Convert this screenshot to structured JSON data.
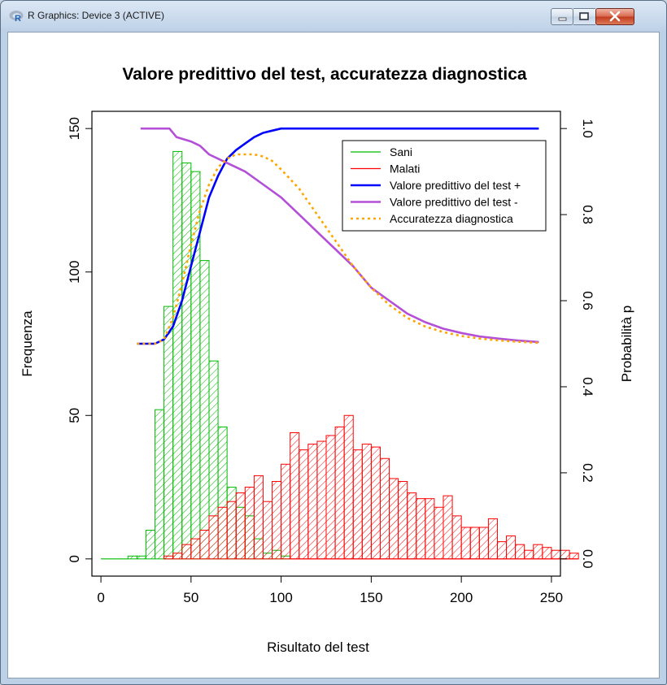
{
  "window": {
    "title": "R Graphics: Device 3 (ACTIVE)",
    "icon": "r-logo-icon",
    "controls": [
      "minimize-icon",
      "maximize-icon",
      "close-icon"
    ]
  },
  "chart_data": {
    "type": "bar",
    "title": "Valore predittivo del test, accuratezza diagnostica",
    "xlabel": "Risultato del test",
    "ylabel": "Frequenza",
    "y2label": "Probabilità p",
    "xlim": [
      -5,
      255
    ],
    "ylim": [
      -6,
      156
    ],
    "y2lim": [
      -0.04,
      1.04
    ],
    "xticks": [
      "0",
      "50",
      "100",
      "150",
      "200",
      "250"
    ],
    "yticks": [
      "0",
      "50",
      "100",
      "150"
    ],
    "y2ticks": [
      "0.0",
      "0.2",
      "0.4",
      "0.6",
      "0.8",
      "1.0"
    ],
    "bin_width": 5,
    "colors": {
      "sani": "#00bb00",
      "malati": "#ff0000",
      "ppv": "#0000ff",
      "npv": "#b44fd8",
      "accuracy": "#ffa500"
    },
    "legend": {
      "position": "top-right",
      "entries": [
        "Sani",
        "Malati",
        "Valore predittivo del test +",
        "Valore predittivo del test -",
        "Accuratezza diagnostica"
      ]
    },
    "histograms": [
      {
        "name": "Sani",
        "bin_start": 15,
        "values": [
          1,
          1,
          10,
          52,
          88,
          142,
          138,
          135,
          104,
          69,
          46,
          25,
          18,
          15,
          7,
          2,
          3,
          1
        ]
      },
      {
        "name": "Malati",
        "bin_start": 35,
        "values": [
          1,
          2,
          5,
          7,
          10,
          15,
          18,
          20,
          23,
          25,
          29,
          20,
          27,
          33,
          44,
          38,
          40,
          41,
          43,
          46,
          50,
          38,
          40,
          39,
          35,
          28,
          27,
          23,
          21,
          21,
          18,
          22,
          15,
          11,
          11,
          11,
          14,
          6,
          8,
          5,
          3,
          5,
          4,
          3,
          3,
          2
        ]
      }
    ],
    "series": [
      {
        "name": "Valore predittivo del test +",
        "x": [
          20,
          25,
          30,
          35,
          40,
          45,
          50,
          55,
          60,
          65,
          70,
          75,
          80,
          85,
          90,
          95,
          100,
          110,
          125,
          150,
          200,
          243
        ],
        "values": [
          0.5,
          0.5,
          0.5,
          0.51,
          0.54,
          0.6,
          0.68,
          0.76,
          0.84,
          0.89,
          0.93,
          0.95,
          0.965,
          0.98,
          0.99,
          0.995,
          1.0,
          1.0,
          1.0,
          1.0,
          1.0,
          1.0
        ]
      },
      {
        "name": "Valore predittivo del test -",
        "x": [
          22,
          30,
          38,
          42,
          50,
          55,
          60,
          65,
          70,
          80,
          90,
          100,
          110,
          120,
          130,
          140,
          150,
          160,
          170,
          180,
          190,
          200,
          210,
          220,
          230,
          243
        ],
        "values": [
          1.0,
          1.0,
          1.0,
          0.98,
          0.97,
          0.96,
          0.94,
          0.93,
          0.92,
          0.9,
          0.87,
          0.84,
          0.8,
          0.76,
          0.72,
          0.68,
          0.63,
          0.6,
          0.57,
          0.55,
          0.535,
          0.525,
          0.517,
          0.512,
          0.508,
          0.504
        ]
      },
      {
        "name": "Accuratezza diagnostica",
        "x": [
          20,
          30,
          35,
          40,
          45,
          50,
          55,
          60,
          65,
          70,
          75,
          80,
          85,
          90,
          95,
          100,
          110,
          120,
          130,
          140,
          150,
          160,
          170,
          180,
          190,
          200,
          210,
          220,
          230,
          243
        ],
        "values": [
          0.5,
          0.5,
          0.51,
          0.56,
          0.64,
          0.73,
          0.81,
          0.87,
          0.91,
          0.93,
          0.94,
          0.94,
          0.94,
          0.935,
          0.925,
          0.905,
          0.86,
          0.8,
          0.74,
          0.68,
          0.63,
          0.59,
          0.56,
          0.54,
          0.527,
          0.518,
          0.512,
          0.508,
          0.505,
          0.502
        ]
      }
    ]
  }
}
